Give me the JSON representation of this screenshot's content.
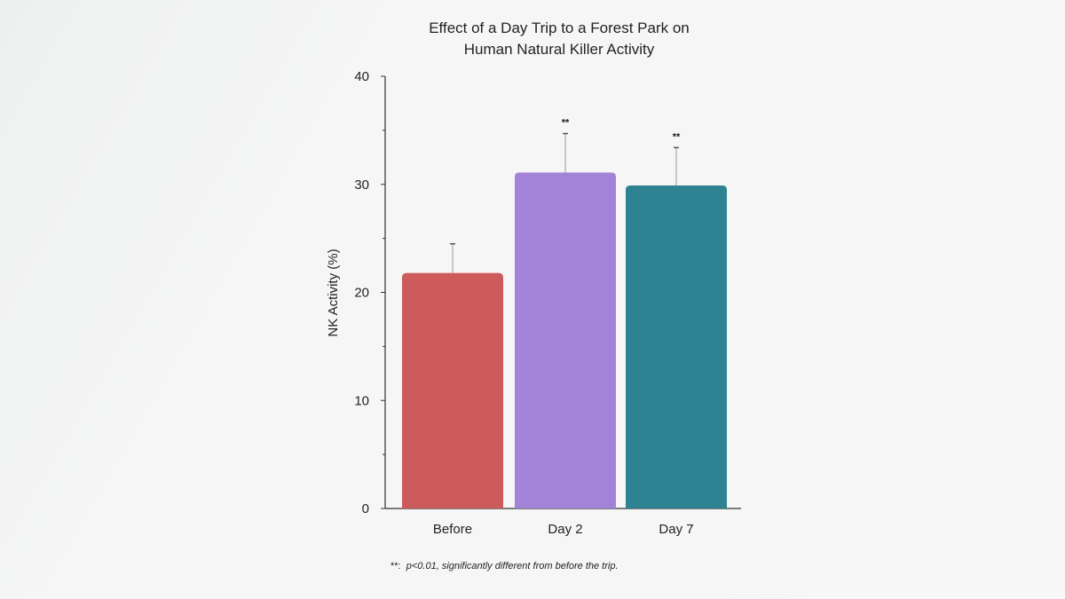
{
  "chart_data": {
    "type": "bar",
    "title_line1": "Effect of a Day Trip to a Forest Park on",
    "title_line2": "Human Natural Killer Activity",
    "xlabel": "",
    "ylabel": "NK Activity (%)",
    "ylim": [
      0,
      40
    ],
    "yticks": [
      0,
      10,
      20,
      30,
      40
    ],
    "minor_yticks": [
      5,
      15,
      25,
      35
    ],
    "categories": [
      "Before",
      "Day 2",
      "Day 7"
    ],
    "values": [
      21.8,
      31.1,
      29.9
    ],
    "error_upper": [
      24.5,
      34.7,
      33.4
    ],
    "significance": [
      "",
      "**",
      "**"
    ],
    "colors": [
      "#cd5b5b",
      "#a383d8",
      "#2f8292"
    ],
    "grid": false,
    "footnote_marker": "**:",
    "footnote": "p<0.01, significantly different from before the trip."
  }
}
